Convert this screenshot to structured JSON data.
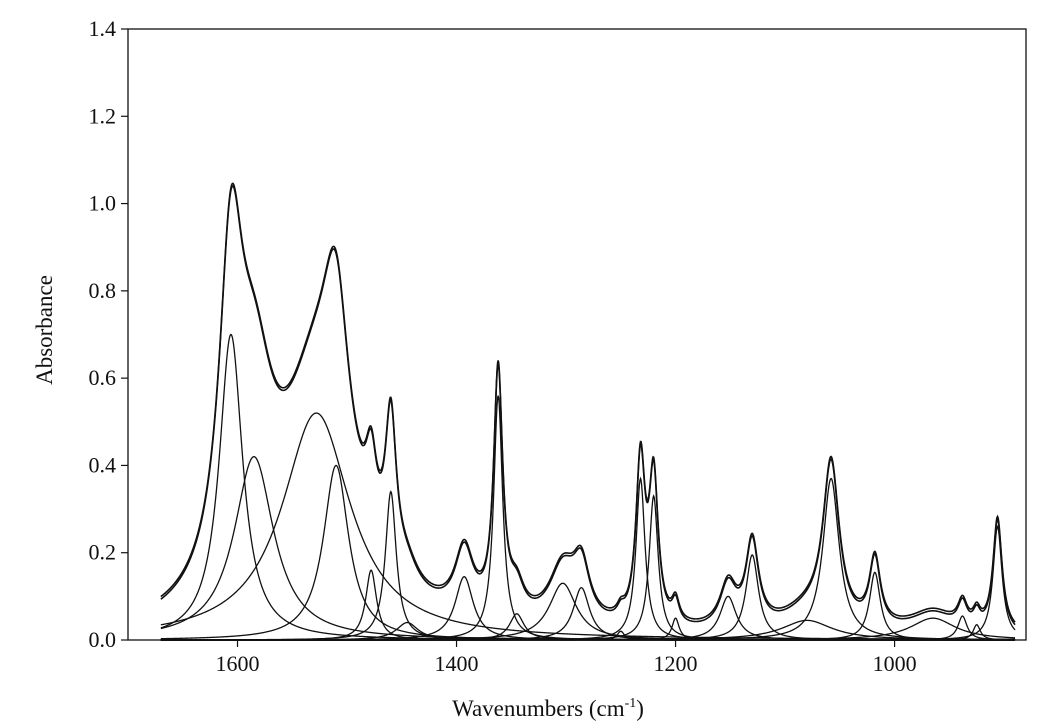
{
  "chart_data": {
    "type": "line",
    "title": "",
    "xlabel_text": "Wavenumbers (cm",
    "xlabel_sup": "-1",
    "xlabel_close": ")",
    "ylabel": "Absorbance",
    "xlim": [
      1700,
      880
    ],
    "ylim": [
      0,
      1.4
    ],
    "x_range": [
      1670,
      890
    ],
    "x_reversed": true,
    "grid": false,
    "x_ticks": [
      1600,
      1400,
      1200,
      1000
    ],
    "x_tick_labels": [
      "1600",
      "1400",
      "1200",
      "1000"
    ],
    "y_ticks": [
      0.0,
      0.2,
      0.4,
      0.6,
      0.8,
      1.0,
      1.2,
      1.4
    ],
    "y_tick_labels": [
      "0.0",
      "0.2",
      "0.4",
      "0.6",
      "0.8",
      "1.0",
      "1.2",
      "1.4"
    ],
    "line_color": "#111111",
    "overlay_offset": 0.006,
    "fit_components": [
      {
        "center": 1606,
        "height": 0.7,
        "hwhm": 13
      },
      {
        "center": 1585,
        "height": 0.42,
        "hwhm": 22
      },
      {
        "center": 1528,
        "height": 0.52,
        "hwhm": 38
      },
      {
        "center": 1510,
        "height": 0.4,
        "hwhm": 14
      },
      {
        "center": 1478,
        "height": 0.16,
        "hwhm": 6
      },
      {
        "center": 1460,
        "height": 0.34,
        "hwhm": 6
      },
      {
        "center": 1445,
        "height": 0.04,
        "hwhm": 12
      },
      {
        "center": 1393,
        "height": 0.145,
        "hwhm": 10
      },
      {
        "center": 1362,
        "height": 0.56,
        "hwhm": 5
      },
      {
        "center": 1345,
        "height": 0.06,
        "hwhm": 8
      },
      {
        "center": 1303,
        "height": 0.13,
        "hwhm": 15
      },
      {
        "center": 1286,
        "height": 0.12,
        "hwhm": 9
      },
      {
        "center": 1250,
        "height": 0.02,
        "hwhm": 4
      },
      {
        "center": 1232,
        "height": 0.37,
        "hwhm": 5
      },
      {
        "center": 1220,
        "height": 0.33,
        "hwhm": 5
      },
      {
        "center": 1200,
        "height": 0.05,
        "hwhm": 4
      },
      {
        "center": 1152,
        "height": 0.1,
        "hwhm": 9
      },
      {
        "center": 1130,
        "height": 0.195,
        "hwhm": 7
      },
      {
        "center": 1080,
        "height": 0.045,
        "hwhm": 28
      },
      {
        "center": 1058,
        "height": 0.37,
        "hwhm": 9
      },
      {
        "center": 1018,
        "height": 0.155,
        "hwhm": 6
      },
      {
        "center": 965,
        "height": 0.05,
        "hwhm": 25
      },
      {
        "center": 938,
        "height": 0.055,
        "hwhm": 5
      },
      {
        "center": 925,
        "height": 0.035,
        "hwhm": 4
      },
      {
        "center": 906,
        "height": 0.26,
        "hwhm": 5
      }
    ]
  }
}
